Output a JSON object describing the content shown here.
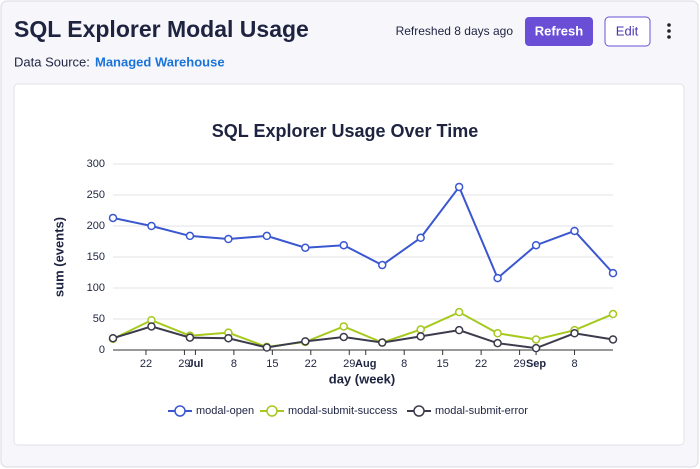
{
  "header": {
    "title": "SQL Explorer Modal Usage",
    "refreshed": "Refreshed 8 days ago",
    "refresh_button": "Refresh",
    "edit_button": "Edit",
    "data_source_label": "Data Source:",
    "data_source": "Managed Warehouse"
  },
  "chart_data": {
    "type": "line",
    "title": "SQL Explorer Usage Over Time",
    "xlabel": "day (week)",
    "ylabel": "sum (events)",
    "x": [
      "06-16",
      "06-23",
      "06-30",
      "07-07",
      "07-14",
      "07-21",
      "07-28",
      "08-04",
      "08-11",
      "08-18",
      "08-25",
      "09-01",
      "09-08",
      "09-15"
    ],
    "series": [
      {
        "name": "modal-open",
        "color": "#3a57d0",
        "values": [
          213,
          200,
          184,
          179,
          184,
          165,
          169,
          137,
          181,
          263,
          116,
          169,
          192,
          124
        ]
      },
      {
        "name": "modal-submit-success",
        "color": "#a6c91e",
        "values": [
          18,
          48,
          23,
          28,
          5,
          13,
          38,
          12,
          33,
          61,
          27,
          17,
          32,
          58
        ]
      },
      {
        "name": "modal-submit-error",
        "color": "#3b3b4c",
        "values": [
          19,
          38,
          20,
          19,
          4,
          14,
          21,
          12,
          22,
          32,
          11,
          3,
          27,
          17
        ]
      }
    ],
    "xlim": [
      "06-16",
      "09-15"
    ],
    "xticks": [
      {
        "value": "06-22",
        "label": "22"
      },
      {
        "value": "06-29",
        "label": "29"
      },
      {
        "value": "07-01",
        "label": "Jul"
      },
      {
        "value": "07-08",
        "label": "8"
      },
      {
        "value": "07-15",
        "label": "15"
      },
      {
        "value": "07-22",
        "label": "22"
      },
      {
        "value": "07-29",
        "label": "29"
      },
      {
        "value": "08-01",
        "label": "Aug"
      },
      {
        "value": "08-08",
        "label": "8"
      },
      {
        "value": "08-15",
        "label": "15"
      },
      {
        "value": "08-22",
        "label": "22"
      },
      {
        "value": "08-29",
        "label": "29"
      },
      {
        "value": "09-01",
        "label": "Sep"
      },
      {
        "value": "09-08",
        "label": "8"
      }
    ],
    "ylim": [
      0,
      300
    ],
    "yticks": [
      0,
      50,
      100,
      150,
      200,
      250,
      300
    ],
    "grid": true,
    "legend": "bottom"
  }
}
